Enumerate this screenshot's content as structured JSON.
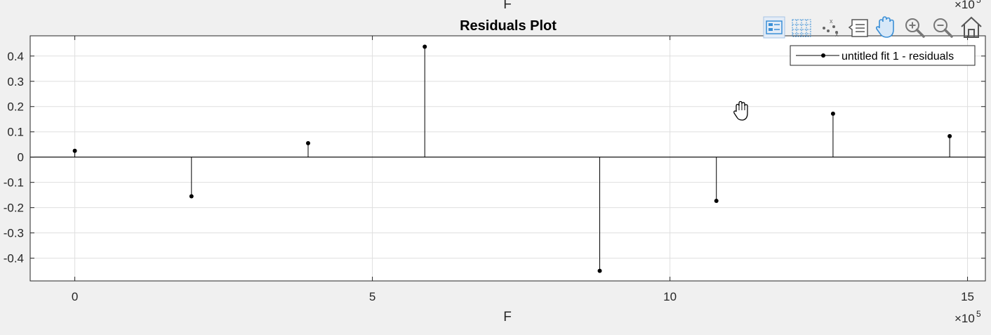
{
  "chart_data": {
    "type": "stem",
    "title": "Residuals Plot",
    "xlabel": "F",
    "top_xlabel": "F",
    "ylabel": "",
    "x_multiplier": "×10",
    "x_exponent": "5",
    "xlim": [
      -0.75,
      15.3
    ],
    "ylim": [
      -0.49,
      0.48
    ],
    "xticks": [
      0,
      5,
      10,
      15
    ],
    "xtick_labels": [
      "0",
      "5",
      "10",
      "15"
    ],
    "yticks": [
      0.4,
      0.3,
      0.2,
      0.1,
      0,
      -0.1,
      -0.2,
      -0.3,
      -0.4
    ],
    "ytick_labels": [
      "0.4",
      "0.3",
      "0.2",
      "0.1",
      "0",
      "-0.1",
      "-0.2",
      "-0.3",
      "-0.4"
    ],
    "grid": true,
    "legend_position": "top-right",
    "series": [
      {
        "name": "untitled fit 1 - residuals",
        "x": [
          0,
          1.96,
          3.92,
          5.88,
          8.82,
          10.78,
          12.74,
          14.7
        ],
        "y": [
          0.025,
          -0.155,
          0.055,
          0.437,
          -0.45,
          -0.173,
          0.172,
          0.083
        ]
      }
    ]
  },
  "toolbar": {
    "icons": [
      "legend-icon",
      "grid-icon",
      "data-cursor-icon",
      "brush-icon",
      "pan-icon",
      "zoom-in-icon",
      "zoom-out-icon",
      "home-icon"
    ]
  },
  "colors": {
    "background": "#f0f0f0",
    "axes_bg": "#ffffff",
    "stem": "#000000",
    "grid": "#dfdfdf",
    "toolbar_active": "#3b8fd6"
  }
}
